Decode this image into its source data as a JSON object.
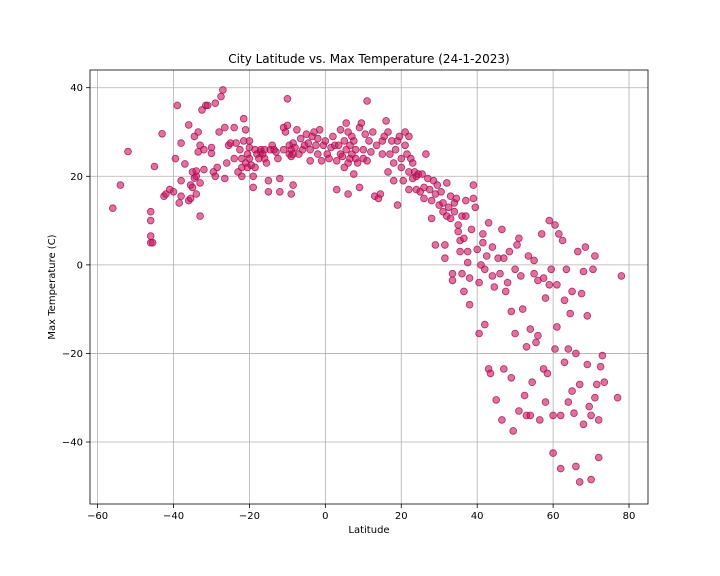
{
  "chart_data": {
    "type": "scatter",
    "title": "City Latitude vs. Max Temperature (24-1-2023)",
    "xlabel": "Latitude",
    "ylabel": "Max Temperature (C)",
    "xlim": [
      -62,
      85
    ],
    "ylim": [
      -54,
      44
    ],
    "xticks": [
      -60,
      -40,
      -20,
      0,
      20,
      40,
      60,
      80
    ],
    "yticks": [
      -40,
      -20,
      0,
      20,
      40
    ],
    "grid": true,
    "marker_color": "#c2185b",
    "marker_edge": "#b0004e",
    "points": [
      [
        -56,
        12.8
      ],
      [
        -54,
        18
      ],
      [
        -52,
        25.6
      ],
      [
        -46,
        5
      ],
      [
        -46,
        6.5
      ],
      [
        -45.5,
        5
      ],
      [
        -46,
        10
      ],
      [
        -46,
        12
      ],
      [
        -45,
        22.2
      ],
      [
        -43,
        29.6
      ],
      [
        -42.5,
        15.5
      ],
      [
        -42,
        16
      ],
      [
        -41,
        17
      ],
      [
        -40,
        16.5
      ],
      [
        -39.5,
        24
      ],
      [
        -39,
        36
      ],
      [
        -38.5,
        14
      ],
      [
        -38,
        15.5
      ],
      [
        -38,
        27.5
      ],
      [
        -38,
        19
      ],
      [
        -37,
        22.8
      ],
      [
        -36,
        14.5
      ],
      [
        -36,
        31.6
      ],
      [
        -35.5,
        15
      ],
      [
        -35.5,
        18
      ],
      [
        -35,
        21
      ],
      [
        -35,
        17.5
      ],
      [
        -34.5,
        19.6
      ],
      [
        -34.5,
        29
      ],
      [
        -34,
        16
      ],
      [
        -34,
        20
      ],
      [
        -34,
        21.2
      ],
      [
        -33.5,
        30
      ],
      [
        -33.5,
        25.5
      ],
      [
        -33,
        11
      ],
      [
        -33,
        18.5
      ],
      [
        -33,
        27
      ],
      [
        -32.5,
        35
      ],
      [
        -32,
        26
      ],
      [
        -32,
        21.5
      ],
      [
        -31.5,
        36
      ],
      [
        -31,
        36
      ],
      [
        -30,
        25.2
      ],
      [
        -30,
        26.5
      ],
      [
        -29.5,
        21
      ],
      [
        -29,
        36.5
      ],
      [
        -29,
        20
      ],
      [
        -28.5,
        22
      ],
      [
        -28,
        30
      ],
      [
        -27.5,
        38
      ],
      [
        -27,
        39.5
      ],
      [
        -26.5,
        31
      ],
      [
        -26.5,
        19.5
      ],
      [
        -26,
        23
      ],
      [
        -25.5,
        27
      ],
      [
        -25,
        27.5
      ],
      [
        -24,
        31
      ],
      [
        -24,
        24
      ],
      [
        -23.5,
        27.5
      ],
      [
        -23,
        21
      ],
      [
        -22.5,
        26
      ],
      [
        -22,
        20
      ],
      [
        -22,
        22
      ],
      [
        -22,
        24
      ],
      [
        -21.5,
        28
      ],
      [
        -21.5,
        33
      ],
      [
        -21,
        30.5
      ],
      [
        -21,
        23
      ],
      [
        -20.5,
        25
      ],
      [
        -20.5,
        22
      ],
      [
        -20,
        26.5
      ],
      [
        -20,
        28
      ],
      [
        -20,
        24
      ],
      [
        -19.5,
        22.5
      ],
      [
        -19,
        20
      ],
      [
        -19,
        17.5
      ],
      [
        -18.5,
        26
      ],
      [
        -18.5,
        22
      ],
      [
        -18,
        25
      ],
      [
        -17.5,
        24
      ],
      [
        -17,
        25.5
      ],
      [
        -17,
        26
      ],
      [
        -16.5,
        25
      ],
      [
        -16,
        26
      ],
      [
        -16,
        24
      ],
      [
        -15.5,
        23
      ],
      [
        -15,
        16.5
      ],
      [
        -15,
        19
      ],
      [
        -14.5,
        26
      ],
      [
        -14,
        27
      ],
      [
        -13.5,
        26
      ],
      [
        -13,
        25.5
      ],
      [
        -12.5,
        24
      ],
      [
        -12,
        16.5
      ],
      [
        -12,
        19.5
      ],
      [
        -11,
        26
      ],
      [
        -11,
        31
      ],
      [
        -10.5,
        30
      ],
      [
        -10,
        37.5
      ],
      [
        -10,
        31.5
      ],
      [
        -9.5,
        27
      ],
      [
        -9.5,
        25
      ],
      [
        -9,
        26
      ],
      [
        -9,
        24.5
      ],
      [
        -9,
        16
      ],
      [
        -8.5,
        27.5
      ],
      [
        -8.5,
        25
      ],
      [
        -8.5,
        18
      ],
      [
        -8,
        26.5
      ],
      [
        -7.5,
        30.5
      ],
      [
        -7,
        25
      ],
      [
        -6.5,
        28.5
      ],
      [
        -6,
        26
      ],
      [
        -5.5,
        27
      ],
      [
        -5,
        29.5
      ],
      [
        -4.5,
        27.5
      ],
      [
        -4,
        26
      ],
      [
        -4,
        23.5
      ],
      [
        -3.5,
        29
      ],
      [
        -3,
        30
      ],
      [
        -2.5,
        27
      ],
      [
        -2,
        25
      ],
      [
        -2,
        28.5
      ],
      [
        -1.5,
        30.5
      ],
      [
        -1,
        23.5
      ],
      [
        -0.5,
        27
      ],
      [
        0,
        28
      ],
      [
        0.5,
        25
      ],
      [
        1,
        24
      ],
      [
        1.5,
        26.5
      ],
      [
        2,
        29
      ],
      [
        2.5,
        27
      ],
      [
        3,
        23.5
      ],
      [
        3,
        17
      ],
      [
        3.5,
        27
      ],
      [
        4,
        30.5
      ],
      [
        4,
        25
      ],
      [
        4.5,
        24.5
      ],
      [
        5,
        28
      ],
      [
        5,
        22
      ],
      [
        5.5,
        32
      ],
      [
        5.5,
        26
      ],
      [
        6,
        23
      ],
      [
        6,
        30
      ],
      [
        6,
        16
      ],
      [
        6.5,
        27
      ],
      [
        6.5,
        24
      ],
      [
        7,
        29
      ],
      [
        7,
        25
      ],
      [
        7.5,
        28
      ],
      [
        7.5,
        20.5
      ],
      [
        8,
        24
      ],
      [
        8,
        26
      ],
      [
        8.5,
        23
      ],
      [
        9,
        31
      ],
      [
        9,
        17.5
      ],
      [
        9.5,
        32
      ],
      [
        10,
        26
      ],
      [
        10,
        24
      ],
      [
        10.5,
        29.5
      ],
      [
        11,
        37
      ],
      [
        11,
        23.5
      ],
      [
        11.5,
        28
      ],
      [
        12,
        25.5
      ],
      [
        12.5,
        30
      ],
      [
        13,
        15.5
      ],
      [
        13.5,
        27
      ],
      [
        14,
        15
      ],
      [
        14.5,
        16
      ],
      [
        15,
        28
      ],
      [
        15,
        25
      ],
      [
        15.5,
        29
      ],
      [
        16,
        32.5
      ],
      [
        16.5,
        30
      ],
      [
        16.5,
        21
      ],
      [
        17,
        25
      ],
      [
        17.5,
        28
      ],
      [
        18,
        23
      ],
      [
        18,
        19
      ],
      [
        18.5,
        26
      ],
      [
        19,
        13.5
      ],
      [
        19,
        28
      ],
      [
        19.5,
        29
      ],
      [
        20,
        22
      ],
      [
        20,
        24
      ],
      [
        20.5,
        19
      ],
      [
        21,
        30
      ],
      [
        21,
        27
      ],
      [
        21.5,
        25
      ],
      [
        22,
        29
      ],
      [
        22,
        21
      ],
      [
        22,
        17
      ],
      [
        22.5,
        24
      ],
      [
        23,
        19.5
      ],
      [
        23,
        23
      ],
      [
        23.5,
        21
      ],
      [
        24,
        17
      ],
      [
        24,
        20
      ],
      [
        24.5,
        20.5
      ],
      [
        25,
        16.5
      ],
      [
        25.5,
        20.5
      ],
      [
        26,
        17.5
      ],
      [
        26,
        15
      ],
      [
        26.5,
        25
      ],
      [
        27,
        19.5
      ],
      [
        27.5,
        17
      ],
      [
        28,
        14.5
      ],
      [
        28,
        10.5
      ],
      [
        28.5,
        19
      ],
      [
        29,
        16
      ],
      [
        29,
        4.5
      ],
      [
        29.5,
        18
      ],
      [
        30,
        13.5
      ],
      [
        30.5,
        16.5
      ],
      [
        31,
        14
      ],
      [
        31,
        12
      ],
      [
        31.5,
        4.5
      ],
      [
        31.5,
        1.5
      ],
      [
        32,
        11
      ],
      [
        32,
        18.5
      ],
      [
        32.5,
        13
      ],
      [
        33,
        15.5
      ],
      [
        33,
        10.5
      ],
      [
        33.5,
        -2
      ],
      [
        33.5,
        -3.5
      ],
      [
        34,
        14
      ],
      [
        34,
        12
      ],
      [
        34.5,
        15
      ],
      [
        35,
        9
      ],
      [
        35,
        7.5
      ],
      [
        35.5,
        5.5
      ],
      [
        35.5,
        3
      ],
      [
        36,
        -2
      ],
      [
        36,
        11
      ],
      [
        36.5,
        6
      ],
      [
        36.5,
        -6
      ],
      [
        37,
        11
      ],
      [
        37,
        14.5
      ],
      [
        37.5,
        3
      ],
      [
        37.5,
        0.5
      ],
      [
        38,
        -3
      ],
      [
        38,
        -9
      ],
      [
        38.5,
        8
      ],
      [
        39,
        18
      ],
      [
        39,
        15
      ],
      [
        39.5,
        13
      ],
      [
        40,
        3.5
      ],
      [
        40.5,
        -15.5
      ],
      [
        40.5,
        -4
      ],
      [
        41,
        0
      ],
      [
        41.5,
        5
      ],
      [
        41.5,
        7
      ],
      [
        42,
        -13.5
      ],
      [
        42,
        -1
      ],
      [
        42.5,
        2
      ],
      [
        43,
        9.5
      ],
      [
        43,
        -23.5
      ],
      [
        43.5,
        -24.5
      ],
      [
        44,
        -2.5
      ],
      [
        44,
        4
      ],
      [
        44.5,
        -5
      ],
      [
        45,
        -30.5
      ],
      [
        45.5,
        1.5
      ],
      [
        46,
        -2
      ],
      [
        46.5,
        -35
      ],
      [
        46.5,
        8
      ],
      [
        47,
        -23.5
      ],
      [
        47,
        1.5
      ],
      [
        47.5,
        -6
      ],
      [
        48,
        -4
      ],
      [
        48.5,
        3
      ],
      [
        49,
        -25.5
      ],
      [
        49,
        -10.5
      ],
      [
        49.5,
        -37.5
      ],
      [
        50,
        -15.5
      ],
      [
        50,
        -1
      ],
      [
        50.5,
        4.5
      ],
      [
        51,
        -33
      ],
      [
        51,
        6
      ],
      [
        51.5,
        -2.5
      ],
      [
        52,
        -10
      ],
      [
        52.5,
        -29.5
      ],
      [
        53,
        -18.5
      ],
      [
        53,
        -34
      ],
      [
        53.5,
        2
      ],
      [
        54,
        -14.5
      ],
      [
        54,
        -34
      ],
      [
        54.5,
        -26.5
      ],
      [
        55,
        -2
      ],
      [
        55,
        1
      ],
      [
        55.5,
        -17.5
      ],
      [
        56,
        -16
      ],
      [
        56,
        -3.5
      ],
      [
        56.5,
        -35
      ],
      [
        57,
        7
      ],
      [
        57.5,
        -23.5
      ],
      [
        57.5,
        -3
      ],
      [
        58,
        -31
      ],
      [
        58,
        -7.5
      ],
      [
        58.5,
        -24.5
      ],
      [
        59,
        10
      ],
      [
        59,
        -4.5
      ],
      [
        59.5,
        -1
      ],
      [
        60,
        -34
      ],
      [
        60,
        -42.5
      ],
      [
        60.5,
        9
      ],
      [
        60.5,
        -19
      ],
      [
        61,
        -14
      ],
      [
        61,
        -4.5
      ],
      [
        61.5,
        7
      ],
      [
        62,
        -34
      ],
      [
        62,
        -46
      ],
      [
        62.5,
        5.5
      ],
      [
        63,
        -22
      ],
      [
        63,
        -8
      ],
      [
        63.5,
        -1
      ],
      [
        64,
        -31
      ],
      [
        64,
        -19
      ],
      [
        64.5,
        -11
      ],
      [
        65,
        -28.5
      ],
      [
        65,
        -6
      ],
      [
        65.5,
        -33.5
      ],
      [
        66,
        -45.5
      ],
      [
        66,
        -20
      ],
      [
        66.5,
        3
      ],
      [
        67,
        -49
      ],
      [
        67,
        -27
      ],
      [
        67.5,
        -6.5
      ],
      [
        68,
        -36
      ],
      [
        68,
        -1.5
      ],
      [
        68.5,
        4
      ],
      [
        69,
        -11.5
      ],
      [
        69,
        -22.5
      ],
      [
        69.5,
        -32
      ],
      [
        70,
        -48.5
      ],
      [
        70,
        -34
      ],
      [
        70.5,
        -1
      ],
      [
        71,
        2
      ],
      [
        71,
        -30
      ],
      [
        71.5,
        -27
      ],
      [
        72,
        -43.5
      ],
      [
        72,
        -35
      ],
      [
        72.5,
        -23
      ],
      [
        73,
        -20.5
      ],
      [
        73.5,
        -26.5
      ],
      [
        77,
        -30
      ],
      [
        78,
        -2.5
      ]
    ]
  }
}
